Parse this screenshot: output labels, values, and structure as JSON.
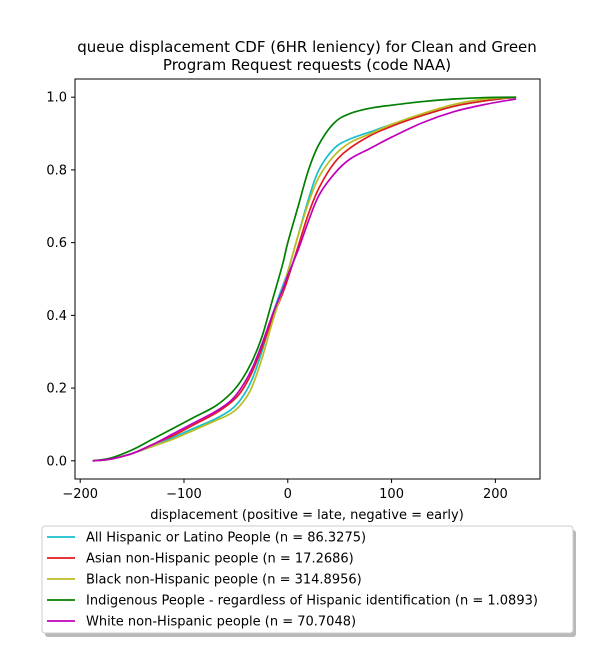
{
  "chart_data": {
    "type": "line",
    "title_lines": [
      "queue displacement CDF (6HR leniency) for Clean and Green",
      "Program Request  requests (code NAA)"
    ],
    "xlabel": "displacement (positive = late, negative = early)",
    "ylabel": "",
    "xlim": [
      -205,
      243
    ],
    "ylim": [
      -0.05,
      1.05
    ],
    "xticks": [
      -200,
      -100,
      0,
      100,
      200
    ],
    "yticks": [
      0.0,
      0.2,
      0.4,
      0.6,
      0.8,
      1.0
    ],
    "xtick_labels": [
      "−200",
      "−100",
      "0",
      "100",
      "200"
    ],
    "ytick_labels": [
      "0.0",
      "0.2",
      "0.4",
      "0.6",
      "0.8",
      "1.0"
    ],
    "grid": false,
    "legend_position": "below",
    "series": [
      {
        "name": "All Hispanic or Latino People (n = 86.3275)",
        "color": "#17becf",
        "x": [
          -188,
          -170,
          -150,
          -130,
          -110,
          -90,
          -70,
          -55,
          -45,
          -35,
          -25,
          -15,
          -5,
          0,
          10,
          20,
          30,
          45,
          60,
          80,
          100,
          130,
          160,
          190,
          220
        ],
        "y": [
          0.0,
          0.005,
          0.02,
          0.04,
          0.065,
          0.09,
          0.115,
          0.14,
          0.17,
          0.22,
          0.3,
          0.4,
          0.48,
          0.52,
          0.62,
          0.72,
          0.8,
          0.86,
          0.885,
          0.905,
          0.925,
          0.95,
          0.975,
          0.99,
          1.0
        ]
      },
      {
        "name": "Asian non-Hispanic people (n = 17.2686)",
        "color": "#e31a1c",
        "x": [
          -188,
          -170,
          -150,
          -130,
          -110,
          -90,
          -70,
          -55,
          -45,
          -35,
          -25,
          -15,
          -5,
          0,
          10,
          20,
          30,
          45,
          60,
          80,
          100,
          130,
          160,
          190,
          220
        ],
        "y": [
          0.0,
          0.005,
          0.02,
          0.045,
          0.07,
          0.1,
          0.13,
          0.16,
          0.19,
          0.24,
          0.31,
          0.39,
          0.46,
          0.5,
          0.59,
          0.68,
          0.75,
          0.82,
          0.86,
          0.895,
          0.92,
          0.95,
          0.975,
          0.99,
          1.0
        ]
      },
      {
        "name": "Black non-Hispanic people (n = 314.8956)",
        "color": "#bcbd22",
        "x": [
          -188,
          -170,
          -150,
          -130,
          -110,
          -90,
          -70,
          -55,
          -45,
          -35,
          -25,
          -15,
          -5,
          0,
          10,
          20,
          30,
          45,
          60,
          80,
          100,
          130,
          160,
          190,
          220
        ],
        "y": [
          0.0,
          0.005,
          0.02,
          0.04,
          0.06,
          0.085,
          0.11,
          0.13,
          0.155,
          0.2,
          0.28,
          0.38,
          0.47,
          0.52,
          0.62,
          0.71,
          0.78,
          0.84,
          0.875,
          0.9,
          0.925,
          0.955,
          0.98,
          0.995,
          1.0
        ]
      },
      {
        "name": "Indigenous People - regardless of Hispanic identification (n = 1.0893)",
        "color": "#008000",
        "x": [
          -188,
          -170,
          -150,
          -130,
          -110,
          -90,
          -70,
          -55,
          -45,
          -35,
          -25,
          -15,
          -5,
          0,
          10,
          20,
          30,
          45,
          60,
          80,
          100,
          130,
          160,
          190,
          220
        ],
        "y": [
          0.0,
          0.008,
          0.03,
          0.06,
          0.09,
          0.12,
          0.15,
          0.185,
          0.22,
          0.27,
          0.34,
          0.44,
          0.54,
          0.6,
          0.7,
          0.8,
          0.87,
          0.93,
          0.955,
          0.97,
          0.978,
          0.988,
          0.995,
          0.999,
          1.0
        ]
      },
      {
        "name": "White non-Hispanic people (n = 70.7048)",
        "color": "#bf00bf",
        "x": [
          -188,
          -170,
          -150,
          -130,
          -110,
          -90,
          -70,
          -55,
          -45,
          -35,
          -25,
          -15,
          -5,
          0,
          10,
          20,
          30,
          45,
          60,
          80,
          100,
          130,
          160,
          190,
          220
        ],
        "y": [
          0.0,
          0.005,
          0.02,
          0.045,
          0.075,
          0.105,
          0.135,
          0.165,
          0.2,
          0.25,
          0.32,
          0.4,
          0.47,
          0.51,
          0.58,
          0.66,
          0.73,
          0.79,
          0.83,
          0.86,
          0.89,
          0.93,
          0.96,
          0.98,
          0.995
        ]
      }
    ]
  }
}
